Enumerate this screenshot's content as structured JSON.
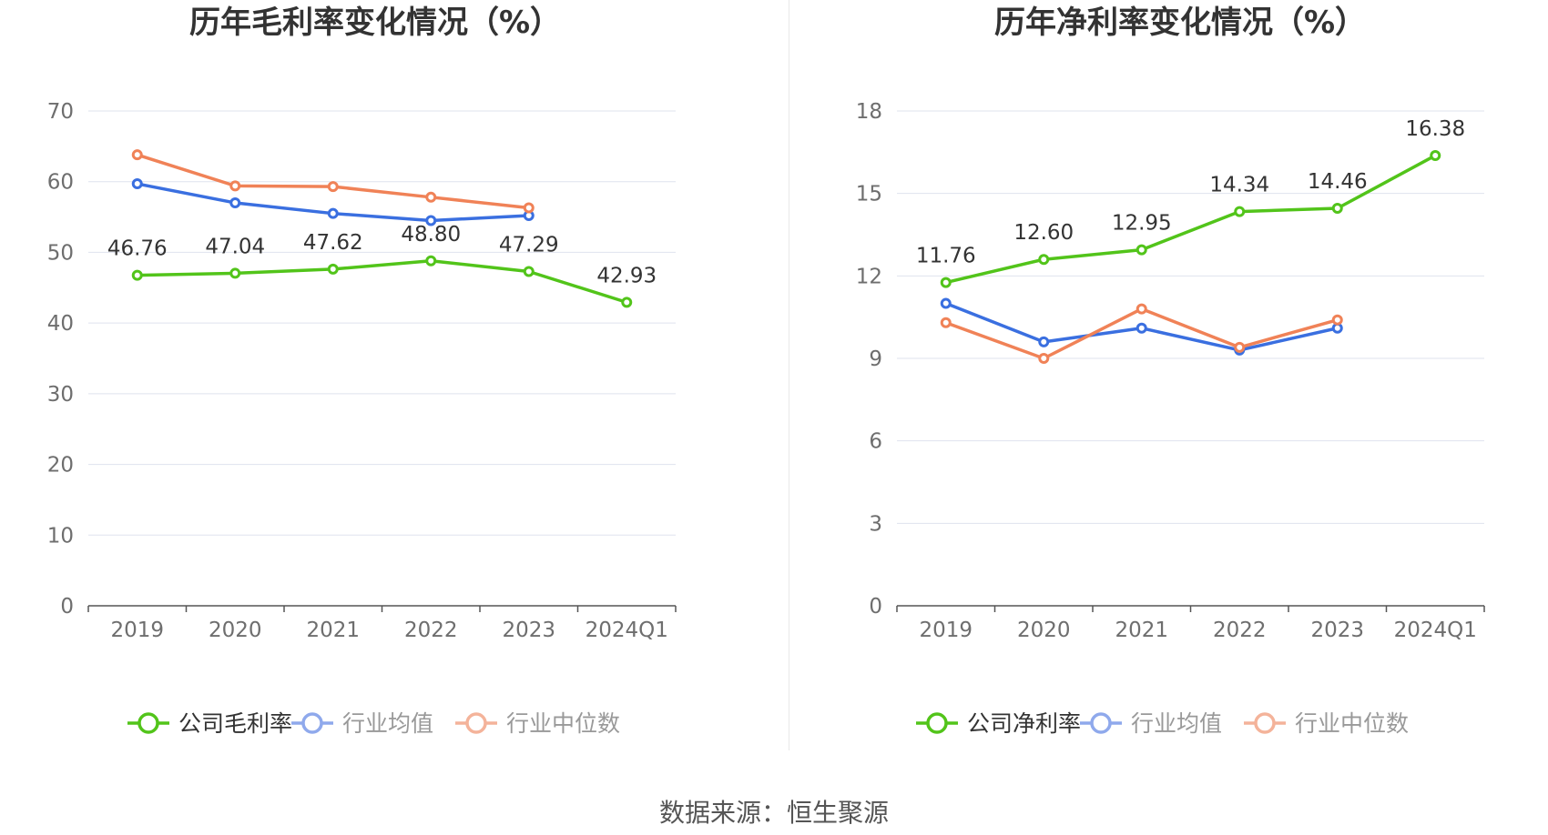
{
  "chart_data": [
    {
      "type": "line",
      "title": "历年毛利率变化情况（%）",
      "categories": [
        "2019",
        "2020",
        "2021",
        "2022",
        "2023",
        "2024Q1"
      ],
      "ylim": [
        0,
        70
      ],
      "yticks": [
        0,
        10,
        20,
        30,
        40,
        50,
        60,
        70
      ],
      "grid": true,
      "legend_position": "bottom",
      "series": [
        {
          "name": "公司毛利率",
          "color": "#52c41a",
          "values": [
            46.76,
            47.04,
            47.62,
            48.8,
            47.29,
            42.93
          ],
          "labels": [
            "46.76",
            "47.04",
            "47.62",
            "48.80",
            "47.29",
            "42.93"
          ]
        },
        {
          "name": "行业均值",
          "color": "#3a6fe0",
          "values": [
            59.7,
            57.0,
            55.5,
            54.5,
            55.2,
            null
          ]
        },
        {
          "name": "行业中位数",
          "color": "#f08257",
          "values": [
            63.8,
            59.4,
            59.3,
            57.8,
            56.3,
            null
          ]
        }
      ]
    },
    {
      "type": "line",
      "title": "历年净利率变化情况（%）",
      "categories": [
        "2019",
        "2020",
        "2021",
        "2022",
        "2023",
        "2024Q1"
      ],
      "ylim": [
        0,
        18
      ],
      "yticks": [
        0,
        3,
        6,
        9,
        12,
        15,
        18
      ],
      "grid": true,
      "legend_position": "bottom",
      "series": [
        {
          "name": "公司净利率",
          "color": "#52c41a",
          "values": [
            11.76,
            12.6,
            12.95,
            14.34,
            14.46,
            16.38
          ],
          "labels": [
            "11.76",
            "12.60",
            "12.95",
            "14.34",
            "14.46",
            "16.38"
          ]
        },
        {
          "name": "行业均值",
          "color": "#3a6fe0",
          "values": [
            11.0,
            9.6,
            10.1,
            9.3,
            10.1,
            null
          ]
        },
        {
          "name": "行业中位数",
          "color": "#f08257",
          "values": [
            10.3,
            9.0,
            10.8,
            9.4,
            10.4,
            null
          ]
        }
      ]
    }
  ],
  "footer": {
    "source": "数据来源：恒生聚源"
  }
}
